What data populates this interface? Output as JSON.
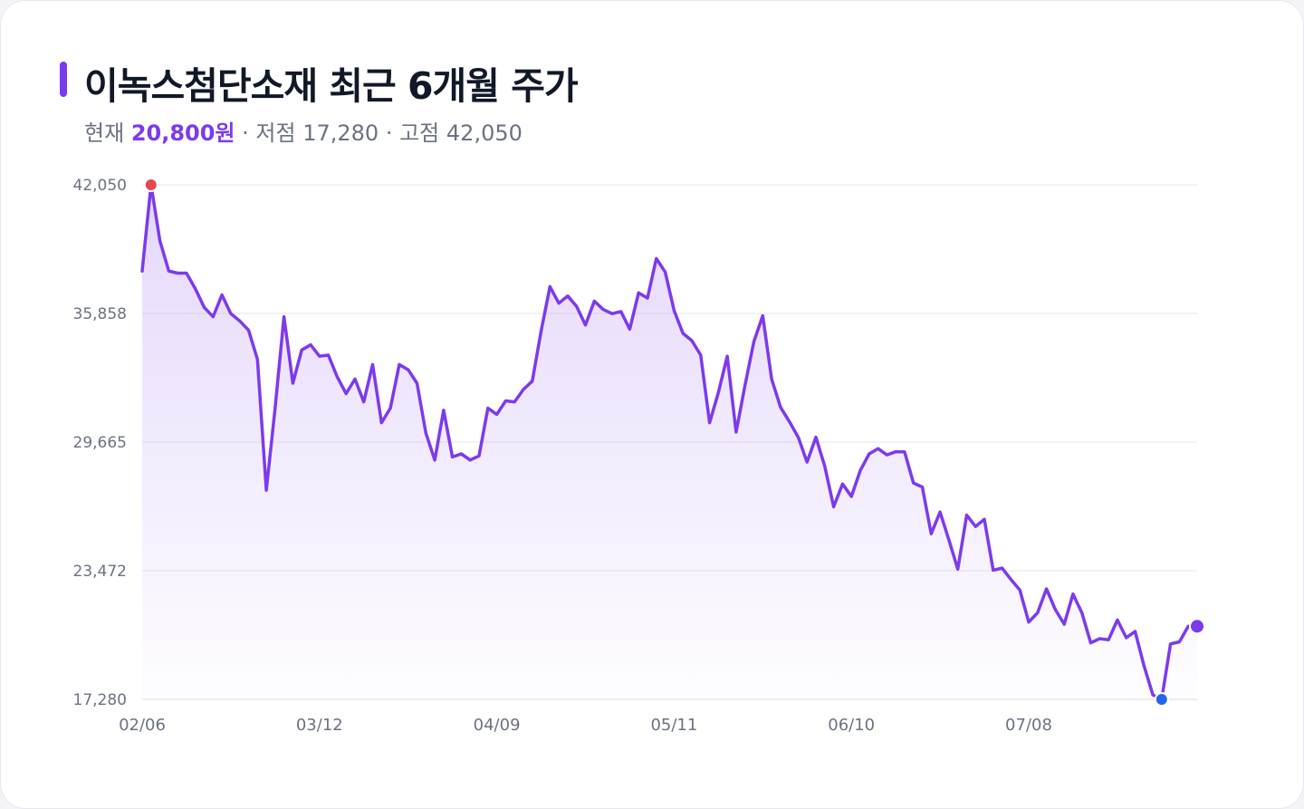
{
  "header": {
    "title": "이녹스첨단소재 최근 6개월 주가",
    "current_label": "현재",
    "current_value": "20,800원",
    "low_label": "· 저점",
    "low_value": "17,280",
    "high_label": "· 고점",
    "high_value": "42,050"
  },
  "colors": {
    "line": "#7c3aed",
    "high_marker": "#e5484d",
    "low_marker": "#2563eb",
    "current_marker": "#7c3aed"
  },
  "chart_data": {
    "type": "area",
    "title": "이녹스첨단소재 최근 6개월 주가",
    "xlabel": "",
    "ylabel": "",
    "ylim": [
      17280,
      42050
    ],
    "y_ticks": [
      "42,050",
      "35,858",
      "29,665",
      "23,472",
      "17,280"
    ],
    "y_tick_values": [
      42050,
      35858,
      29665,
      23472,
      17280
    ],
    "x_ticks": [
      {
        "label": "02/06",
        "index": 0
      },
      {
        "label": "03/12",
        "index": 20
      },
      {
        "label": "04/09",
        "index": 40
      },
      {
        "label": "05/11",
        "index": 60
      },
      {
        "label": "06/10",
        "index": 80
      },
      {
        "label": "07/08",
        "index": 100
      }
    ],
    "grid": true,
    "series": [
      {
        "values": [
          37900,
          42050,
          39350,
          37900,
          37800,
          37800,
          37050,
          36150,
          35700,
          36750,
          35850,
          35500,
          35050,
          33650,
          27350,
          31300,
          35700,
          32500,
          34100,
          34350,
          33800,
          33850,
          32800,
          32000,
          32700,
          31600,
          33400,
          30600,
          31300,
          33400,
          33150,
          32500,
          30100,
          28800,
          31200,
          28950,
          29100,
          28800,
          29000,
          31300,
          31000,
          31650,
          31600,
          32200,
          32600,
          35000,
          37150,
          36350,
          36700,
          36200,
          35300,
          36450,
          36050,
          35850,
          35950,
          35100,
          36850,
          36600,
          38500,
          37850,
          36000,
          34900,
          34550,
          33850,
          30600,
          32050,
          33800,
          30150,
          32400,
          34500,
          35750,
          32700,
          31350,
          30650,
          29900,
          28700,
          29900,
          28500,
          26550,
          27650,
          27050,
          28300,
          29100,
          29350,
          29050,
          29200,
          29200,
          27700,
          27500,
          25250,
          26300,
          24950,
          23550,
          26150,
          25600,
          25950,
          23500,
          23600,
          23050,
          22550,
          21000,
          21450,
          22600,
          21600,
          20900,
          22350,
          21450,
          20000,
          20200,
          20150,
          21100,
          20250,
          20550,
          18900,
          17500,
          17280,
          19950,
          20050,
          20800,
          20800
        ]
      }
    ],
    "markers": {
      "high_index": 1,
      "low_index": 115,
      "current_index": 119
    }
  }
}
